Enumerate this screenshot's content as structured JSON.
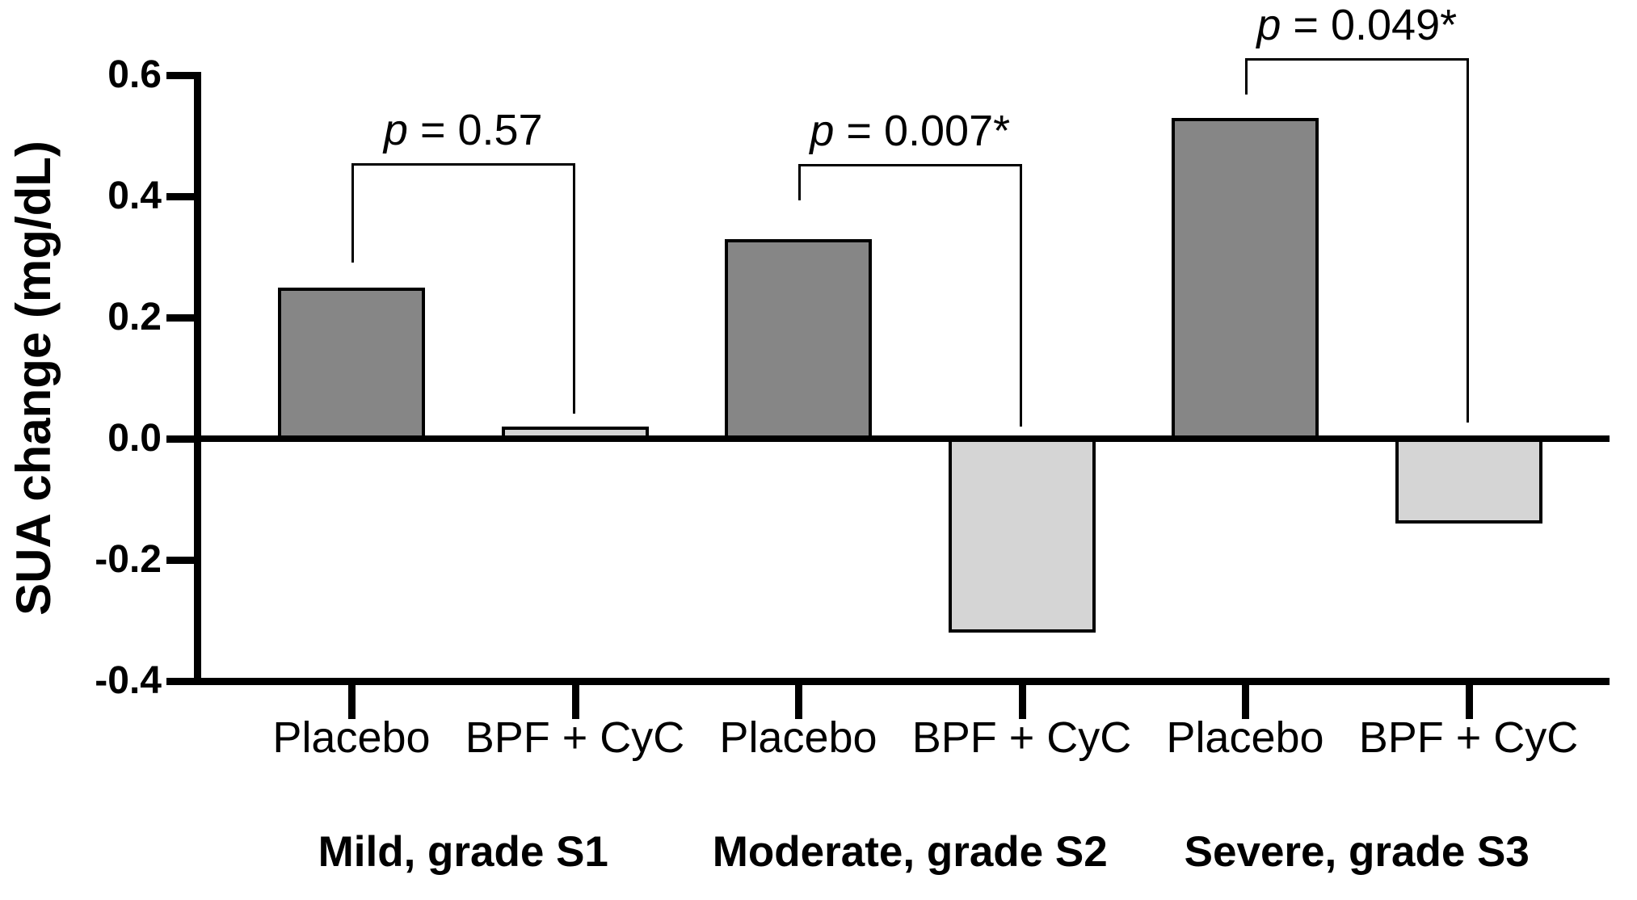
{
  "chart_data": {
    "type": "bar",
    "title": "",
    "ylabel": "SUA change (mg/dL)",
    "xlabel": "",
    "ylim": [
      -0.4,
      0.6
    ],
    "grid": false,
    "legend_position": "none",
    "ytick_values": [
      0.6,
      0.4,
      0.2,
      0.0,
      -0.2,
      -0.4
    ],
    "ytick_labels": [
      "0.6",
      "0.4",
      "0.2",
      "0.0",
      "-0.2",
      "-0.4"
    ],
    "bar_colors": {
      "placebo": "#868686",
      "bpf_cyc": "#d5d5d5",
      "outline": "#000000"
    },
    "groups": [
      {
        "label": "Mild, grade S1",
        "p_label": "p = 0.57",
        "significant": false,
        "bars": [
          {
            "label": "Placebo",
            "value": 0.25,
            "color_key": "placebo"
          },
          {
            "label": "BPF + CyC",
            "value": 0.02,
            "color_key": "bpf_cyc"
          }
        ]
      },
      {
        "label": "Moderate, grade S2",
        "p_label": "p = 0.007*",
        "significant": true,
        "bars": [
          {
            "label": "Placebo",
            "value": 0.33,
            "color_key": "placebo"
          },
          {
            "label": "BPF + CyC",
            "value": -0.32,
            "color_key": "bpf_cyc"
          }
        ]
      },
      {
        "label": "Severe, grade S3",
        "p_label": "p = 0.049*",
        "significant": true,
        "bars": [
          {
            "label": "Placebo",
            "value": 0.53,
            "color_key": "placebo"
          },
          {
            "label": "BPF + CyC",
            "value": -0.14,
            "color_key": "bpf_cyc"
          }
        ]
      }
    ]
  }
}
